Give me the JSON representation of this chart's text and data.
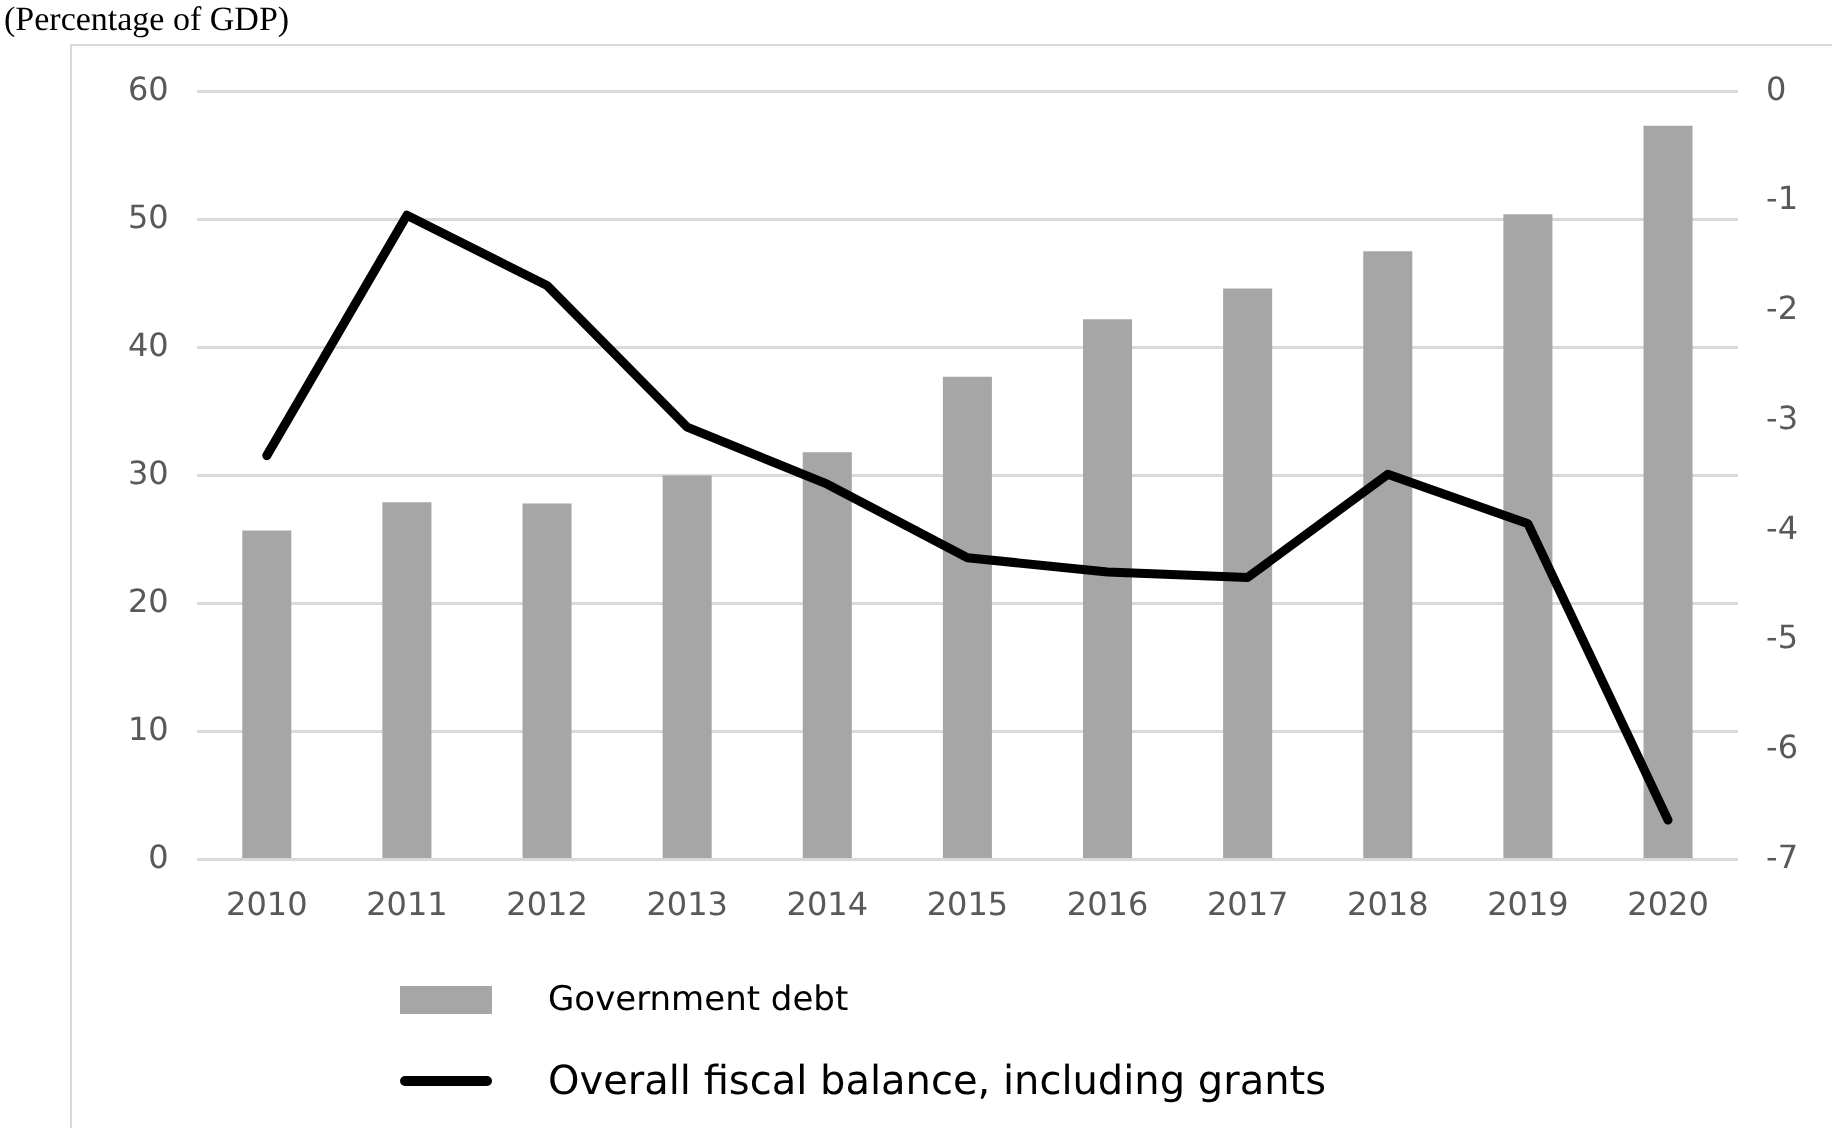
{
  "chart_data": {
    "type": "bar",
    "title": "(Percentage of GDP)",
    "categories": [
      "2010",
      "2011",
      "2012",
      "2013",
      "2014",
      "2015",
      "2016",
      "2017",
      "2018",
      "2019",
      "2020"
    ],
    "series": [
      {
        "name": "Government debt",
        "color": "#a6a6a6",
        "values": [
          25.7,
          27.9,
          27.8,
          30,
          31.8,
          37.7,
          42.2,
          44.6,
          47.5,
          50.4,
          57.3
        ]
      },
      {
        "name": "Overall fiscal balance, including grants",
        "type": "line",
        "axis": "y2",
        "color": "#000000",
        "values": [
          -3.32,
          -1.13,
          -1.77,
          -3.06,
          -3.58,
          -4.25,
          -4.38,
          -4.43,
          -3.49,
          -3.94,
          -6.64
        ]
      }
    ],
    "ylim": [
      0,
      60
    ],
    "yticks": [
      0,
      10,
      20,
      30,
      40,
      50,
      60
    ],
    "y2lim": [
      -7,
      0
    ],
    "y2ticks": [
      -7,
      -6,
      -5,
      -4,
      -3,
      -2,
      -1,
      0
    ],
    "grid": "y",
    "legend": "bottom",
    "marker": "none",
    "line_style": "solid"
  }
}
